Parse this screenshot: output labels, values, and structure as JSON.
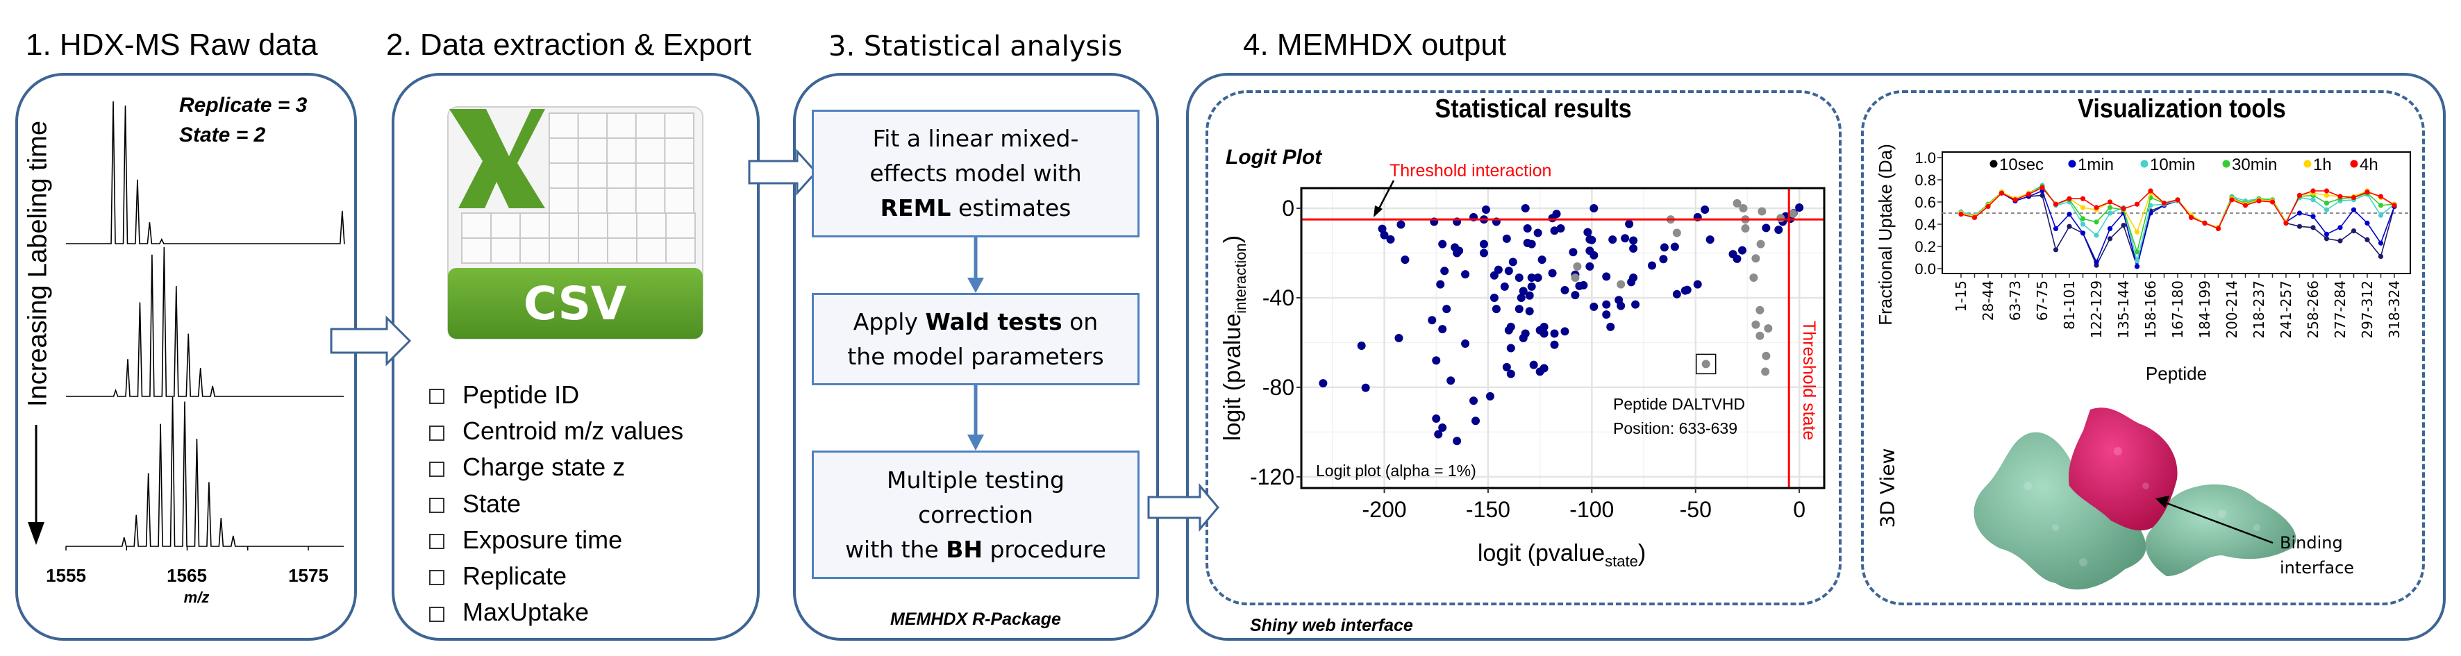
{
  "steps": [
    {
      "title": "1. HDX-MS Raw data"
    },
    {
      "title": "2. Data extraction & Export"
    },
    {
      "title": "3. Statistical analysis"
    },
    {
      "title": "4. MEMHDX output"
    }
  ],
  "raw_data": {
    "replicate_label": "Replicate = 3",
    "state_label": "State = 2",
    "time_axis_label": "Increasing Labeling time",
    "x_ticks": [
      "1555",
      "1565",
      "1575"
    ],
    "x_label": "m/z",
    "spectra": [
      {
        "peaks_mz": [
          1558.9,
          1559.9,
          1560.9,
          1561.9,
          1562.9,
          1577.8
        ],
        "intensity": [
          1.0,
          0.97,
          0.45,
          0.15,
          0.03,
          0.23
        ]
      },
      {
        "peaks_mz": [
          1559.1,
          1560.1,
          1561.1,
          1562.1,
          1563.1,
          1564.1,
          1565.1,
          1566.1,
          1567.1
        ],
        "intensity": [
          0.04,
          0.25,
          0.63,
          0.95,
          1.0,
          0.74,
          0.42,
          0.19,
          0.07
        ]
      },
      {
        "peaks_mz": [
          1559.8,
          1560.8,
          1561.8,
          1562.8,
          1563.8,
          1564.8,
          1565.8,
          1566.8,
          1567.8,
          1568.8
        ],
        "intensity": [
          0.06,
          0.21,
          0.49,
          0.82,
          1.0,
          0.97,
          0.72,
          0.43,
          0.19,
          0.07
        ]
      }
    ]
  },
  "export": {
    "file_icon_label": "CSV",
    "fields": [
      "Peptide ID",
      "Centroid m/z values",
      "Charge state z",
      "State",
      "Exposure time",
      "Replicate",
      "MaxUptake"
    ]
  },
  "analysis": {
    "box1": {
      "line1": "Fit a linear mixed-",
      "line2": "effects model with",
      "bold": "REML",
      "rest": " estimates"
    },
    "box2": {
      "pre": "Apply ",
      "bold": "Wald tests",
      "post": " on",
      "line2": "the model parameters"
    },
    "box3": {
      "line1": "Multiple testing",
      "line2": "correction",
      "pre": "with the ",
      "bold": "BH",
      "post": " procedure"
    },
    "package_label": "MEMHDX R-Package"
  },
  "output": {
    "stat_title": "Statistical results",
    "viz_title": "Visualization tools",
    "footer_label": "Shiny web interface",
    "view3d_label": "3D View",
    "binding_label_1": "Binding",
    "binding_label_2": "interface"
  },
  "chart_data": [
    {
      "type": "scatter",
      "title": "Logit Plot",
      "xlabel": {
        "main": "logit (pvalue",
        "sub": "state",
        "close": ")"
      },
      "ylabel": {
        "main": "logit (pvalue",
        "sub": "interaction",
        "close": ")"
      },
      "xlim": [
        -240,
        12
      ],
      "ylim": [
        -125,
        9
      ],
      "x_ticks": [
        -200,
        -150,
        -100,
        -50,
        0
      ],
      "y_ticks": [
        0,
        -40,
        -80,
        -120
      ],
      "grid": true,
      "threshold_interaction": {
        "value": -5,
        "label": "Threshold interaction",
        "color": "#ff0000"
      },
      "threshold_state": {
        "value": -5,
        "label": "Threshold state",
        "color": "#ff0000"
      },
      "annotation_box": {
        "label": "Logit plot (alpha = 1%)"
      },
      "highlight": {
        "x": -45,
        "y": -69.6,
        "line1": "Peptide DALTVHD",
        "line2": "Position: 633-639"
      },
      "series": [
        {
          "color": "#00008b",
          "points": [
            [
              -229.5,
              -78.2
            ],
            [
              -211,
              -61.4
            ],
            [
              -209,
              -80.2
            ],
            [
              -201,
              -9.2
            ],
            [
              -200,
              -12
            ],
            [
              -197,
              -13.9
            ],
            [
              -192,
              -7.3
            ],
            [
              -190,
              -23
            ],
            [
              -193,
              -58
            ],
            [
              -176,
              -6
            ],
            [
              -172,
              -16
            ],
            [
              -171,
              -28
            ],
            [
              -173,
              -34
            ],
            [
              -170,
              -45
            ],
            [
              -177,
              -50
            ],
            [
              -172,
              -54
            ],
            [
              -175,
              -68
            ],
            [
              -168,
              -77
            ],
            [
              -175,
              -94
            ],
            [
              -172,
              -98
            ],
            [
              -174,
              -101
            ],
            [
              -165,
              -104
            ],
            [
              -165,
              -6
            ],
            [
              -166,
              -17.5
            ],
            [
              -164,
              -19
            ],
            [
              -165,
              -20
            ],
            [
              -161,
              -29.5
            ],
            [
              -161,
              -60.5
            ],
            [
              -157,
              -86
            ],
            [
              -156,
              -95
            ],
            [
              -157,
              -4
            ],
            [
              -151,
              -0.6
            ],
            [
              -152,
              -5
            ],
            [
              -152,
              -16
            ],
            [
              -152,
              -20
            ],
            [
              -146,
              -6
            ],
            [
              -145,
              -27.5
            ],
            [
              -147,
              -30
            ],
            [
              -142,
              -35
            ],
            [
              -147,
              -40
            ],
            [
              -146,
              -45
            ],
            [
              -149,
              -84
            ],
            [
              -141,
              -13.6
            ],
            [
              -140,
              -28
            ],
            [
              -138,
              -24
            ],
            [
              -135,
              -31
            ],
            [
              -133,
              -37
            ],
            [
              -134,
              -40
            ],
            [
              -130,
              -39
            ],
            [
              -135,
              -45
            ],
            [
              -130,
              -46
            ],
            [
              -132,
              0
            ],
            [
              -131,
              -9
            ],
            [
              -131,
              -15.5
            ],
            [
              -129,
              -16
            ],
            [
              -126,
              -11
            ],
            [
              -129,
              -31
            ],
            [
              -129,
              -35
            ],
            [
              -126,
              -31
            ],
            [
              -124,
              -23
            ],
            [
              -119,
              -29
            ],
            [
              -140,
              -54.5
            ],
            [
              -139,
              -53
            ],
            [
              -132,
              -56
            ],
            [
              -133,
              -58
            ],
            [
              -139,
              -62.5
            ],
            [
              -141,
              -71
            ],
            [
              -139,
              -74
            ],
            [
              -128,
              -70
            ],
            [
              -125,
              -73
            ],
            [
              -123,
              -71.5
            ],
            [
              -125,
              -54.5
            ],
            [
              -123,
              -53
            ],
            [
              -123,
              -56
            ],
            [
              -118,
              -56
            ],
            [
              -118,
              -61
            ],
            [
              -113,
              -55
            ],
            [
              -119,
              -4.4
            ],
            [
              -117,
              -2.5
            ],
            [
              -118,
              -10
            ],
            [
              -115,
              -9
            ],
            [
              -113,
              -36.6
            ],
            [
              -109,
              -19.6
            ],
            [
              -108,
              -29.7
            ],
            [
              -108,
              -38.8
            ],
            [
              -106,
              -34.7
            ],
            [
              -104,
              -34.4
            ],
            [
              -102,
              -10.7
            ],
            [
              -101,
              -13.9
            ],
            [
              -100,
              -14.2
            ],
            [
              -101,
              -19
            ],
            [
              -99,
              -21
            ],
            [
              -101,
              -26
            ],
            [
              -99,
              0
            ],
            [
              -99,
              -44
            ],
            [
              -93,
              -30.5
            ],
            [
              -93,
              -43
            ],
            [
              -93,
              -47.5
            ],
            [
              -91,
              -53
            ],
            [
              -90,
              -14
            ],
            [
              -87,
              -41
            ],
            [
              -86,
              -43.6
            ],
            [
              -84,
              -13.4
            ],
            [
              -82,
              -7
            ],
            [
              -80,
              -14.4
            ],
            [
              -80,
              -18
            ],
            [
              -80,
              -31
            ],
            [
              -81,
              -33
            ],
            [
              -79,
              -43
            ],
            [
              -71,
              -25.6
            ],
            [
              -65.5,
              -22.7
            ],
            [
              -65,
              -17.5
            ],
            [
              -60,
              -17.2
            ],
            [
              -59,
              -38.4
            ],
            [
              -55,
              -36.8
            ],
            [
              -54,
              -36.5
            ],
            [
              -49,
              -34
            ],
            [
              -49,
              -4
            ],
            [
              -45.5,
              -0.6
            ],
            [
              -43,
              -14
            ],
            [
              -32,
              -20.5
            ],
            [
              -30,
              -22.6
            ],
            [
              -27.5,
              -18.8
            ],
            [
              -16,
              -8.8
            ],
            [
              -10,
              -9.6
            ],
            [
              -8,
              -6
            ],
            [
              -6.6,
              -3.6
            ],
            [
              -4.3,
              -4.7
            ],
            [
              -2.8,
              -2.2
            ],
            [
              0,
              0.3
            ]
          ]
        },
        {
          "color": "#8c8c8c",
          "points": [
            [
              -62,
              -5
            ],
            [
              -59,
              -11
            ],
            [
              -107,
              -26
            ],
            [
              -108,
              -31
            ],
            [
              -86,
              -34
            ],
            [
              -30,
              2.2
            ],
            [
              -27,
              0
            ],
            [
              -18,
              -1.4
            ],
            [
              -26,
              -5
            ],
            [
              -26,
              -9
            ],
            [
              -18.6,
              -16
            ],
            [
              -21,
              -22.4
            ],
            [
              -22,
              -31
            ],
            [
              -19,
              -45.5
            ],
            [
              -21,
              -52
            ],
            [
              -19,
              -57
            ],
            [
              -15,
              -53.7
            ],
            [
              -16,
              -66
            ],
            [
              -16.4,
              -73
            ],
            [
              -45,
              -69.6
            ],
            [
              -9,
              -4.4
            ],
            [
              -3,
              -2.4
            ]
          ]
        }
      ]
    },
    {
      "type": "line",
      "xlabel": "Peptide",
      "ylabel": "Fractional Uptake (Da)",
      "ylim": [
        -0.04,
        1.05
      ],
      "y_ticks": [
        "0.0",
        "0.2",
        "0.4",
        "0.6",
        "0.8",
        "1.0"
      ],
      "reference_line": 0.5,
      "legend_position": "top",
      "categories": [
        "1-15",
        "",
        "28-44",
        "",
        "63-73",
        "",
        "67-75",
        "",
        "81-101",
        "",
        "122-129",
        "",
        "135-144",
        "",
        "158-166",
        "",
        "167-180",
        "",
        "184-199",
        "",
        "200-214",
        "",
        "218-237",
        "",
        "241-257",
        "",
        "258-266",
        "",
        "277-284",
        "",
        "297-312",
        "",
        "318-324"
      ],
      "series": [
        {
          "name": "10sec",
          "color": "#1c1c6b",
          "legend_color": "#000000",
          "values": [
            0.51,
            0.47,
            0.57,
            0.68,
            0.61,
            0.65,
            0.66,
            0.17,
            0.38,
            0.32,
            0.03,
            0.27,
            0.39,
            0.02,
            0.52,
            0.57,
            0.61,
            0.47,
            0.41,
            0.37,
            0.63,
            0.59,
            0.62,
            0.61,
            0.41,
            0.38,
            0.37,
            0.27,
            0.25,
            0.34,
            0.26,
            0.11,
            0.56
          ]
        },
        {
          "name": "1min",
          "color": "#0000cc",
          "legend_color": "#0000cc",
          "values": [
            0.51,
            0.47,
            0.57,
            0.68,
            0.61,
            0.65,
            0.7,
            0.36,
            0.49,
            0.32,
            0.06,
            0.36,
            0.5,
            0.02,
            0.5,
            0.57,
            0.61,
            0.47,
            0.41,
            0.37,
            0.63,
            0.59,
            0.62,
            0.61,
            0.42,
            0.5,
            0.47,
            0.31,
            0.37,
            0.53,
            0.41,
            0.23,
            0.56
          ]
        },
        {
          "name": "10min",
          "color": "#48d1cc",
          "legend_color": "#48d1cc",
          "values": [
            0.51,
            0.48,
            0.58,
            0.69,
            0.63,
            0.68,
            0.75,
            0.57,
            0.6,
            0.4,
            0.3,
            0.5,
            0.55,
            0.07,
            0.57,
            0.58,
            0.61,
            0.48,
            0.41,
            0.37,
            0.65,
            0.61,
            0.63,
            0.62,
            0.42,
            0.64,
            0.62,
            0.53,
            0.61,
            0.62,
            0.67,
            0.48,
            0.58
          ]
        },
        {
          "name": "30min",
          "color": "#32cd32",
          "legend_color": "#32cd32",
          "values": [
            0.5,
            0.47,
            0.58,
            0.69,
            0.63,
            0.68,
            0.74,
            0.58,
            0.62,
            0.45,
            0.42,
            0.55,
            0.53,
            0.15,
            0.64,
            0.59,
            0.62,
            0.48,
            0.41,
            0.37,
            0.64,
            0.59,
            0.63,
            0.62,
            0.42,
            0.65,
            0.66,
            0.59,
            0.63,
            0.64,
            0.68,
            0.57,
            0.58
          ]
        },
        {
          "name": "1h",
          "color": "#ffd700",
          "legend_color": "#ffd700",
          "values": [
            0.5,
            0.47,
            0.57,
            0.69,
            0.63,
            0.68,
            0.73,
            0.58,
            0.63,
            0.55,
            0.53,
            0.6,
            0.54,
            0.33,
            0.68,
            0.59,
            0.62,
            0.48,
            0.41,
            0.37,
            0.63,
            0.58,
            0.62,
            0.61,
            0.42,
            0.66,
            0.68,
            0.66,
            0.65,
            0.65,
            0.7,
            0.64,
            0.58
          ]
        },
        {
          "name": "4h",
          "color": "#ff0000",
          "legend_color": "#ff0000",
          "values": [
            0.49,
            0.46,
            0.56,
            0.68,
            0.62,
            0.67,
            0.73,
            0.58,
            0.63,
            0.63,
            0.55,
            0.6,
            0.54,
            0.58,
            0.7,
            0.59,
            0.62,
            0.46,
            0.41,
            0.36,
            0.62,
            0.57,
            0.61,
            0.6,
            0.41,
            0.66,
            0.7,
            0.7,
            0.65,
            0.64,
            0.69,
            0.65,
            0.57
          ]
        }
      ]
    }
  ],
  "colors": {
    "panel_border": "#3e6594",
    "flow_box_border": "#4f81bd",
    "csv_green": "#5a9e2a",
    "protein_main": "#7fbf9f",
    "protein_binding": "#d81b60"
  }
}
